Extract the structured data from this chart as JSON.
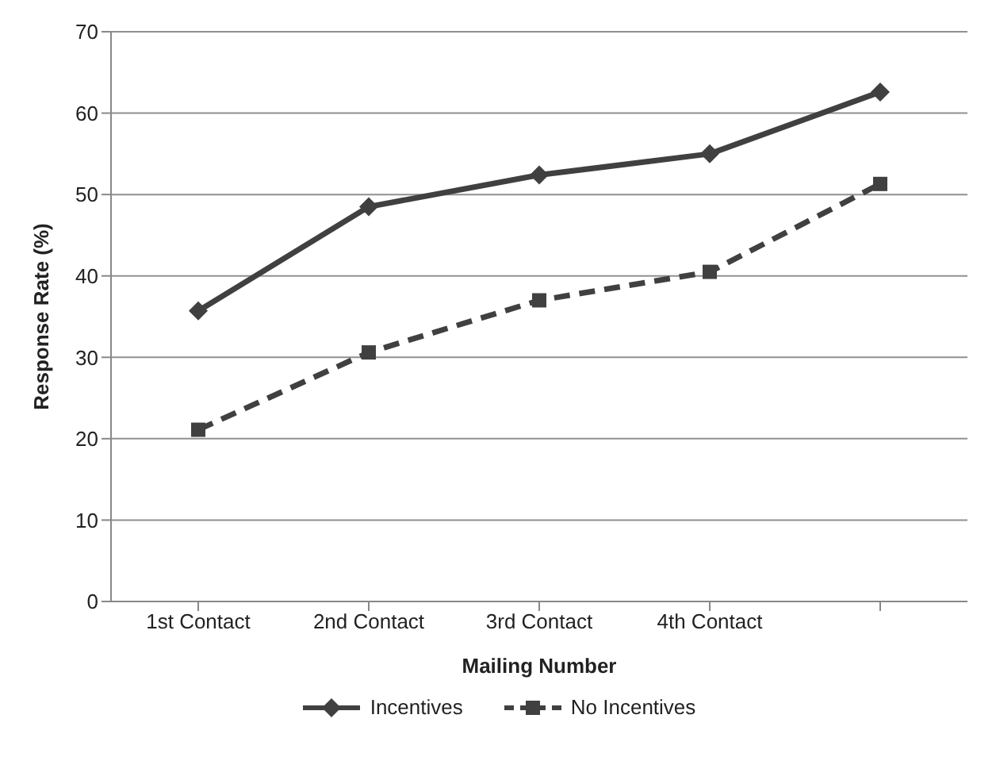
{
  "chart_data": {
    "type": "line",
    "xlabel": "Mailing Number",
    "ylabel": "Response Rate (%)",
    "categories": [
      "1st Contact",
      "2nd Contact",
      "3rd Contact",
      "4th Contact",
      null
    ],
    "series": [
      {
        "name": "Incentives",
        "color": "#404040",
        "values": [
          35.7,
          48.5,
          52.4,
          55.0,
          62.6
        ],
        "marker": "diamond",
        "line_style": "solid"
      },
      {
        "name": "No Incentives",
        "color": "#404040",
        "values": [
          21.1,
          30.6,
          37.0,
          40.5,
          51.3
        ],
        "marker": "square",
        "line_style": "dashed"
      }
    ],
    "ylim": [
      0,
      70
    ],
    "yticks": [
      0,
      10,
      20,
      30,
      40,
      50,
      60,
      70
    ],
    "grid": "y",
    "legend": "bottom"
  }
}
